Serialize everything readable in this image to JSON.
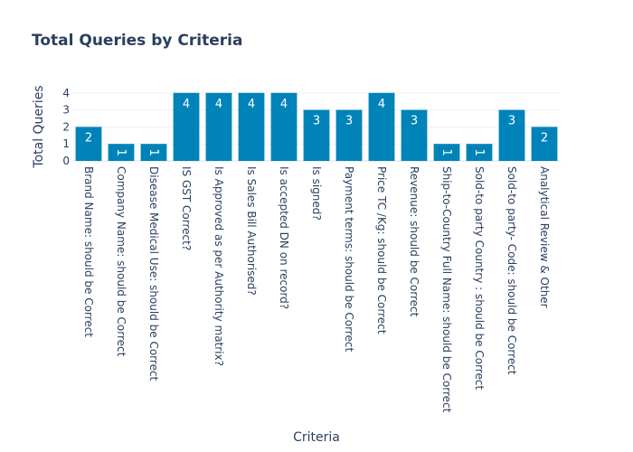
{
  "chart_data": {
    "type": "bar",
    "title": "Total Queries by Criteria",
    "xlabel": "Criteria",
    "ylabel": "Total Queries",
    "ylim": [
      0,
      4.2
    ],
    "yticks": [
      "0",
      "1",
      "2",
      "3",
      "4"
    ],
    "grid": true,
    "legend": "none",
    "bar_color": "#0083b8",
    "categories": [
      "Brand Name: should be Correct",
      "Company Name: should be Correct",
      "Disease Medical Use: should be Correct",
      "IS GST Correct?",
      "Is Approved as per Authority matrix?",
      "Is Sales Bill Authorised?",
      "Is accepted DN on record?",
      "Is signed?",
      "Payment terms: should be Correct",
      "Price TC /Kg: should be Correct",
      "Revenue: should be Correct",
      "Ship-to-Country Full Name: should be Correct",
      "Sold-to party Country : should be Correct",
      "Sold-to party- Code: should be Correct",
      "Analytical Review & Other"
    ],
    "values": [
      2,
      1,
      1,
      4,
      4,
      4,
      4,
      3,
      3,
      4,
      3,
      1,
      1,
      3,
      2
    ]
  }
}
